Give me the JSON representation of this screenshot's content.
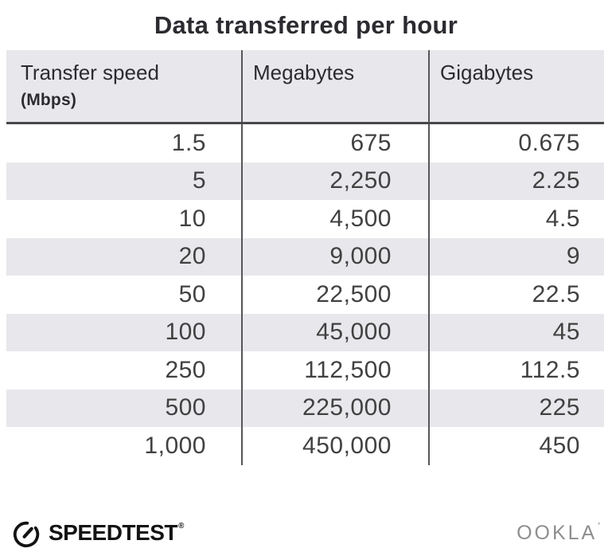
{
  "title": "Data transferred per hour",
  "table": {
    "columns": [
      {
        "label": "Transfer speed",
        "sublabel": "(Mbps)"
      },
      {
        "label": "Megabytes",
        "sublabel": ""
      },
      {
        "label": "Gigabytes",
        "sublabel": ""
      }
    ],
    "rows": [
      [
        "1.5",
        "675",
        "0.675"
      ],
      [
        "5",
        "2,250",
        "2.25"
      ],
      [
        "10",
        "4,500",
        "4.5"
      ],
      [
        "20",
        "9,000",
        "9"
      ],
      [
        "50",
        "22,500",
        "22.5"
      ],
      [
        "100",
        "45,000",
        "45"
      ],
      [
        "250",
        "112,500",
        "112.5"
      ],
      [
        "500",
        "225,000",
        "225"
      ],
      [
        "1,000",
        "450,000",
        "450"
      ]
    ]
  },
  "chart_data": {
    "type": "table",
    "title": "Data transferred per hour",
    "columns": [
      "Transfer speed (Mbps)",
      "Megabytes",
      "Gigabytes"
    ],
    "rows": [
      [
        1.5,
        675,
        0.675
      ],
      [
        5,
        2250,
        2.25
      ],
      [
        10,
        4500,
        4.5
      ],
      [
        20,
        9000,
        9
      ],
      [
        50,
        22500,
        22.5
      ],
      [
        100,
        45000,
        45
      ],
      [
        250,
        112500,
        112.5
      ],
      [
        500,
        225000,
        225
      ],
      [
        1000,
        450000,
        450
      ]
    ],
    "layout": {
      "striped_rows": true,
      "stripe_on": "even rows (2nd, 4th, ...)",
      "alignment": "right"
    }
  },
  "footer": {
    "speedtest_label": "SPEEDTEST",
    "speedtest_trademark": "®",
    "ookla_label": "OOKLA",
    "ookla_trademark": "’",
    "icons": {
      "gauge": "speedometer-gauge-icon"
    }
  },
  "colors": {
    "header-bg": "#e8e7eb",
    "stripe": "#e8e7eb",
    "divider": "#565658",
    "header-rule": "#48484a",
    "title-text": "#2b2b30",
    "number-text": "#414141",
    "speedtest-black": "#131313",
    "ookla-grey": "#8e8e8e"
  }
}
